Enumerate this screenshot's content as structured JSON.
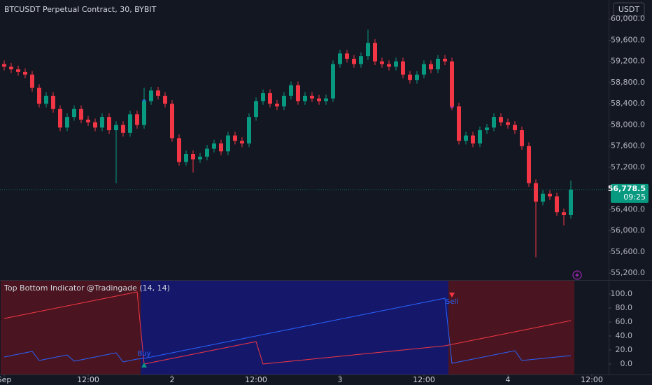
{
  "chart_data": [
    {
      "type": "candlestick",
      "title": "BTCUSDT Perpetual Contract, 30, BYBIT",
      "currency": "USDT",
      "open": [
        59150,
        59100,
        59050,
        59000,
        58950,
        58700,
        58400,
        58550,
        58300,
        57950,
        58150,
        58300,
        58100,
        58050,
        57950,
        58150,
        57900,
        58000,
        57850,
        58200,
        58000,
        58450,
        58650,
        58550,
        58400,
        57750,
        57300,
        57450,
        57350,
        57400,
        57550,
        57650,
        57500,
        57800,
        57700,
        57650,
        58150,
        58450,
        58600,
        58400,
        58350,
        58550,
        58750,
        58450,
        58550,
        58500,
        58450,
        58500,
        59150,
        59350,
        59250,
        59150,
        59300,
        59550,
        59200,
        59150,
        59100,
        59200,
        58950,
        58850,
        58950,
        59150,
        59050,
        59250,
        59200,
        58350,
        57700,
        57800,
        57650,
        57900,
        57950,
        58150,
        58050,
        58000,
        57900,
        57600,
        56900,
        56550,
        56700,
        56650,
        56350,
        56300
      ],
      "high": [
        59220,
        59170,
        59120,
        59070,
        59020,
        58770,
        58620,
        58620,
        58370,
        58220,
        58370,
        58370,
        58170,
        58120,
        58220,
        58220,
        58070,
        58070,
        58270,
        58270,
        58700,
        58720,
        58720,
        58620,
        58470,
        57820,
        57520,
        57520,
        57470,
        57620,
        57720,
        57720,
        57870,
        57870,
        57770,
        58220,
        58520,
        58670,
        58670,
        58470,
        58620,
        58820,
        58820,
        58620,
        58620,
        58570,
        58570,
        59220,
        59420,
        59420,
        59320,
        59370,
        59800,
        59620,
        59270,
        59220,
        59270,
        59270,
        59020,
        59020,
        59220,
        59220,
        59320,
        59320,
        59270,
        58420,
        57870,
        57870,
        57970,
        58020,
        58220,
        58220,
        58120,
        58070,
        57970,
        57670,
        56970,
        56770,
        56770,
        56720,
        56420,
        56950
      ],
      "low": [
        59030,
        58980,
        58930,
        58880,
        58630,
        58330,
        58330,
        58230,
        57880,
        57880,
        58080,
        58030,
        57980,
        57880,
        57880,
        57830,
        56900,
        57780,
        57780,
        57930,
        57930,
        58380,
        58480,
        58330,
        57680,
        57230,
        57230,
        57100,
        57280,
        57330,
        57480,
        57430,
        57430,
        57630,
        57580,
        57580,
        58080,
        58380,
        58330,
        58280,
        58280,
        58480,
        58380,
        58380,
        58430,
        58380,
        58380,
        58430,
        59080,
        59180,
        59080,
        59080,
        59230,
        59130,
        59080,
        59030,
        59030,
        58880,
        58780,
        58780,
        58880,
        58980,
        58980,
        59130,
        58280,
        57630,
        57630,
        57580,
        57580,
        57830,
        57880,
        57980,
        57930,
        57830,
        57530,
        56830,
        55500,
        56480,
        56580,
        56280,
        56100,
        56230
      ],
      "close": [
        59100,
        59050,
        59000,
        58950,
        58700,
        58400,
        58550,
        58300,
        57950,
        58150,
        58300,
        58100,
        58050,
        57950,
        58150,
        57900,
        58000,
        57850,
        58200,
        58000,
        58450,
        58650,
        58550,
        58400,
        57750,
        57300,
        57450,
        57350,
        57400,
        57550,
        57650,
        57500,
        57800,
        57700,
        57650,
        58150,
        58450,
        58600,
        58400,
        58350,
        58550,
        58750,
        58450,
        58550,
        58500,
        58450,
        58500,
        59150,
        59350,
        59250,
        59150,
        59300,
        59550,
        59200,
        59150,
        59100,
        59200,
        58950,
        58850,
        58950,
        59150,
        59050,
        59250,
        59200,
        58350,
        57700,
        57800,
        57650,
        57900,
        57950,
        58150,
        58050,
        58000,
        57900,
        57600,
        56900,
        56550,
        56700,
        56650,
        56350,
        56300,
        56778.5
      ],
      "up_color": "#089981",
      "down_color": "#f23645",
      "ylim": [
        55070,
        60360
      ],
      "yticks": [
        {
          "value": 55200,
          "label": "55,200.0"
        },
        {
          "value": 55600,
          "label": "55,600.0"
        },
        {
          "value": 56000,
          "label": "56,000.0"
        },
        {
          "value": 56400,
          "label": "56,400.0"
        },
        {
          "value": 56800,
          "label": "56,800.0"
        },
        {
          "value": 57200,
          "label": "57,200.0"
        },
        {
          "value": 57600,
          "label": "57,600.0"
        },
        {
          "value": 58000,
          "label": "58,000.0"
        },
        {
          "value": 58400,
          "label": "58,400.0"
        },
        {
          "value": 58800,
          "label": "58,800.0"
        },
        {
          "value": 59200,
          "label": "59,200.0"
        },
        {
          "value": 59600,
          "label": "59,600.0"
        },
        {
          "value": 60000,
          "label": "60,000.0"
        }
      ],
      "xlim": [
        -0.6,
        86.4
      ],
      "xticks": [
        {
          "value": 0,
          "label": "Sep"
        },
        {
          "value": 12,
          "label": "12:00"
        },
        {
          "value": 24,
          "label": "2"
        },
        {
          "value": 36,
          "label": "12:00"
        },
        {
          "value": 48,
          "label": "3"
        },
        {
          "value": 60,
          "label": "12:00"
        },
        {
          "value": 72,
          "label": "4"
        },
        {
          "value": 84,
          "label": "12:00"
        }
      ],
      "last_price_label": "56,778.5",
      "countdown": "09:25"
    },
    {
      "type": "line",
      "title": "Top Bottom Indicator @Tradingade (14, 14)",
      "series": [
        {
          "color": "#f23645",
          "values": [
            65,
            67,
            69,
            71,
            73,
            75,
            77,
            79,
            81,
            83,
            85,
            87,
            89,
            91,
            93,
            95,
            97,
            99,
            101,
            103,
            0,
            2,
            4,
            6,
            8,
            10,
            12,
            14,
            16,
            18,
            20,
            22,
            24,
            26,
            28,
            30,
            32,
            0,
            1,
            2,
            3,
            4,
            5,
            6,
            7,
            8,
            9,
            10,
            11,
            12,
            13,
            14,
            15,
            16,
            17,
            18,
            19,
            20,
            21,
            22,
            23,
            24,
            25,
            26,
            28,
            30,
            32,
            34,
            36,
            38,
            40,
            42,
            44,
            46,
            48,
            50,
            52,
            54,
            56,
            58,
            60,
            62
          ]
        },
        {
          "color": "#2962ff",
          "values": [
            10,
            12,
            14,
            16,
            18,
            5,
            7,
            9,
            11,
            13,
            4,
            6,
            8,
            10,
            12,
            14,
            16,
            3,
            5,
            7,
            8,
            10,
            12,
            14,
            16,
            18,
            20,
            22,
            24,
            26,
            28,
            30,
            32,
            34,
            36,
            38,
            40,
            42,
            44,
            46,
            48,
            50,
            52,
            54,
            56,
            58,
            60,
            62,
            64,
            66,
            68,
            70,
            72,
            74,
            76,
            78,
            80,
            82,
            84,
            86,
            88,
            90,
            92,
            94,
            1,
            3,
            5,
            7,
            9,
            11,
            13,
            15,
            17,
            19,
            5,
            6,
            7,
            8,
            9,
            10,
            11,
            12
          ]
        }
      ],
      "signals": [
        {
          "label": "Buy",
          "index": 20,
          "color": "#2962ff",
          "arrow_color": "#089981"
        },
        {
          "label": "Sell",
          "index": 64,
          "color": "#2962ff",
          "arrow_color": "#f23645"
        }
      ],
      "bear_zone_color": "#4a1520",
      "bull_zone_color": "#15186a",
      "xlim": [
        -0.6,
        86.4
      ],
      "ylim": [
        -15,
        120
      ],
      "yticks": [
        {
          "value": 0,
          "label": "0.0"
        },
        {
          "value": 20,
          "label": "20.0"
        },
        {
          "value": 40,
          "label": "40.0"
        },
        {
          "value": 60,
          "label": "60.0"
        },
        {
          "value": 80,
          "label": "80.0"
        },
        {
          "value": 100,
          "label": "100.0"
        }
      ]
    }
  ]
}
